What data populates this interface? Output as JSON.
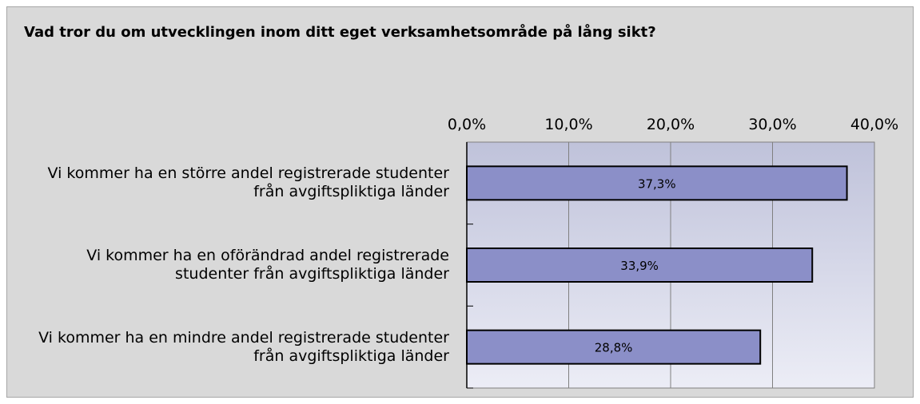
{
  "chart_data": {
    "type": "bar",
    "orientation": "horizontal",
    "title": "Vad tror du om utvecklingen inom ditt eget verksamhetsområde på lång sikt?",
    "categories": [
      "Vi kommer ha en större andel registrerade studenter från avgiftspliktiga länder",
      "Vi kommer ha en oförändrad andel registrerade studenter från avgiftspliktiga länder",
      "Vi kommer ha en mindre andel registrerade studenter från avgiftspliktiga länder"
    ],
    "values": [
      37.3,
      33.9,
      28.8
    ],
    "value_labels": [
      "37,3%",
      "33,9%",
      "28,8%"
    ],
    "color": "#8b8fc8",
    "xlim": [
      0,
      40
    ],
    "xticks": [
      {
        "value": 0,
        "label": "0,0%"
      },
      {
        "value": 10,
        "label": "10,0%"
      },
      {
        "value": 20,
        "label": "20,0%"
      },
      {
        "value": 30,
        "label": "30,0%"
      },
      {
        "value": 40,
        "label": "40,0%"
      }
    ],
    "grid": true
  }
}
